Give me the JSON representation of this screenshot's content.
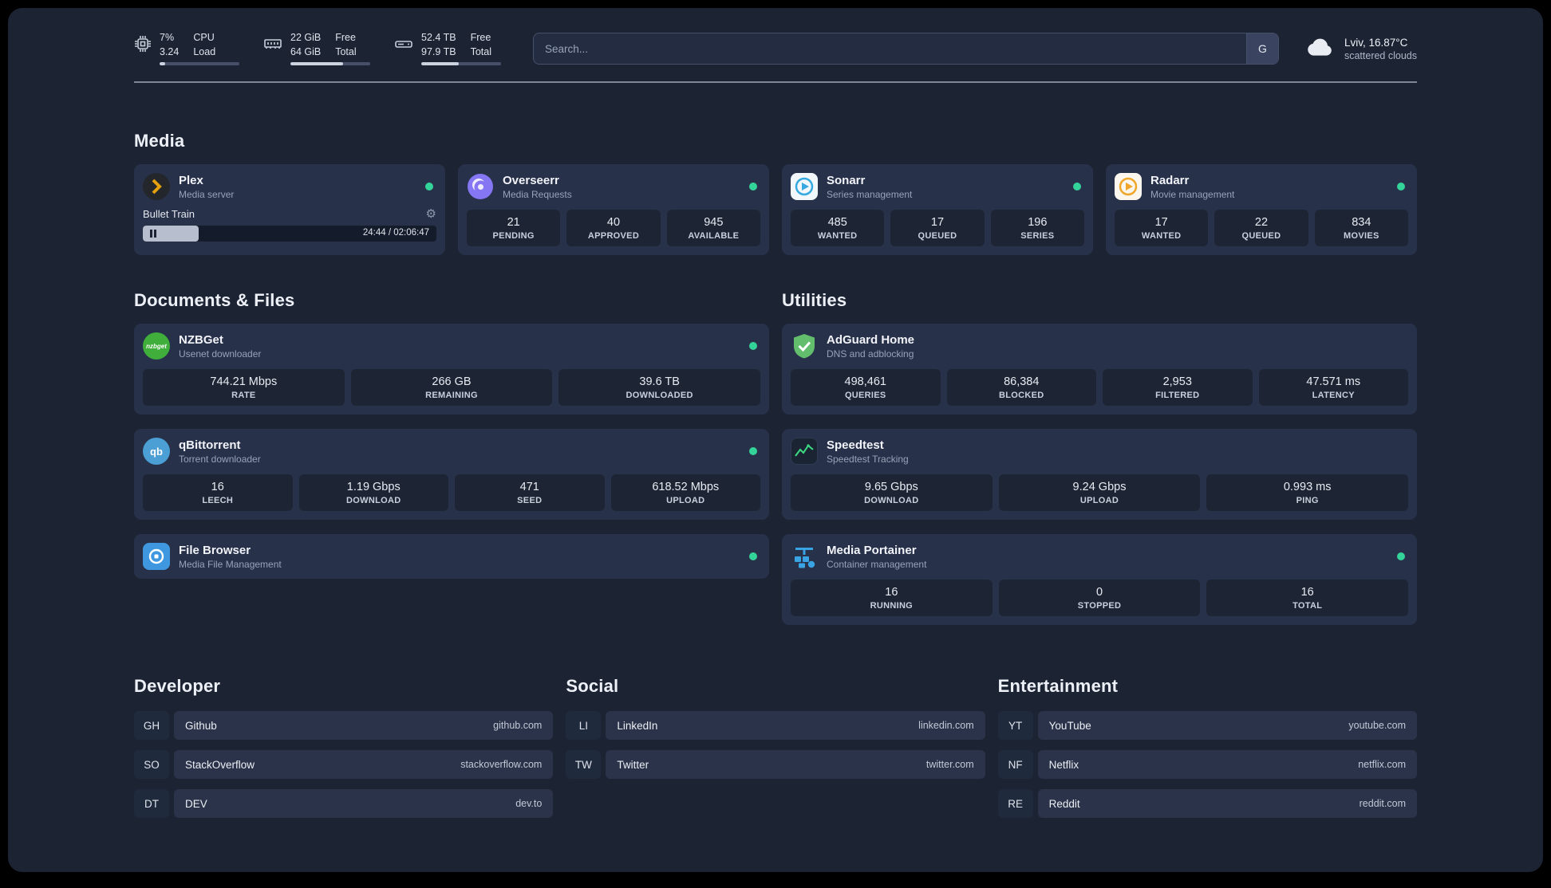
{
  "topbar": {
    "cpu": {
      "value_top": "7%",
      "value_bottom": "3.24",
      "label_top": "CPU",
      "label_bottom": "Load",
      "progress": 7
    },
    "ram": {
      "value_top": "22 GiB",
      "value_bottom": "64 GiB",
      "label_top": "Free",
      "label_bottom": "Total",
      "progress": 66
    },
    "disk": {
      "value_top": "52.4 TB",
      "value_bottom": "97.9 TB",
      "label_top": "Free",
      "label_bottom": "Total",
      "progress": 47
    },
    "search": {
      "placeholder": "Search...",
      "provider": "G"
    },
    "weather": {
      "location": "Lviv, 16.87°C",
      "condition": "scattered clouds"
    }
  },
  "media": {
    "title": "Media",
    "plex": {
      "name": "Plex",
      "subtitle": "Media server",
      "track": "Bullet Train",
      "time": "24:44 / 02:06:47",
      "progress": 19
    },
    "overseerr": {
      "name": "Overseerr",
      "subtitle": "Media Requests",
      "stats": [
        {
          "value": "21",
          "label": "PENDING"
        },
        {
          "value": "40",
          "label": "APPROVED"
        },
        {
          "value": "945",
          "label": "AVAILABLE"
        }
      ]
    },
    "sonarr": {
      "name": "Sonarr",
      "subtitle": "Series management",
      "stats": [
        {
          "value": "485",
          "label": "WANTED"
        },
        {
          "value": "17",
          "label": "QUEUED"
        },
        {
          "value": "196",
          "label": "SERIES"
        }
      ]
    },
    "radarr": {
      "name": "Radarr",
      "subtitle": "Movie management",
      "stats": [
        {
          "value": "17",
          "label": "WANTED"
        },
        {
          "value": "22",
          "label": "QUEUED"
        },
        {
          "value": "834",
          "label": "MOVIES"
        }
      ]
    }
  },
  "documents": {
    "title": "Documents & Files",
    "nzbget": {
      "name": "NZBGet",
      "subtitle": "Usenet downloader",
      "icon_text": "nzbget",
      "stats": [
        {
          "value": "744.21 Mbps",
          "label": "RATE"
        },
        {
          "value": "266 GB",
          "label": "REMAINING"
        },
        {
          "value": "39.6 TB",
          "label": "DOWNLOADED"
        }
      ]
    },
    "qbittorrent": {
      "name": "qBittorrent",
      "subtitle": "Torrent downloader",
      "icon_text": "qb",
      "stats": [
        {
          "value": "16",
          "label": "LEECH"
        },
        {
          "value": "1.19 Gbps",
          "label": "DOWNLOAD"
        },
        {
          "value": "471",
          "label": "SEED"
        },
        {
          "value": "618.52 Mbps",
          "label": "UPLOAD"
        }
      ]
    },
    "filebrowser": {
      "name": "File Browser",
      "subtitle": "Media File Management"
    }
  },
  "utilities": {
    "title": "Utilities",
    "adguard": {
      "name": "AdGuard Home",
      "subtitle": "DNS and adblocking",
      "stats": [
        {
          "value": "498,461",
          "label": "QUERIES"
        },
        {
          "value": "86,384",
          "label": "BLOCKED"
        },
        {
          "value": "2,953",
          "label": "FILTERED"
        },
        {
          "value": "47.571 ms",
          "label": "LATENCY"
        }
      ]
    },
    "speedtest": {
      "name": "Speedtest",
      "subtitle": "Speedtest Tracking",
      "stats": [
        {
          "value": "9.65 Gbps",
          "label": "DOWNLOAD"
        },
        {
          "value": "9.24 Gbps",
          "label": "UPLOAD"
        },
        {
          "value": "0.993 ms",
          "label": "PING"
        }
      ]
    },
    "portainer": {
      "name": "Media Portainer",
      "subtitle": "Container management",
      "stats": [
        {
          "value": "16",
          "label": "RUNNING"
        },
        {
          "value": "0",
          "label": "STOPPED"
        },
        {
          "value": "16",
          "label": "TOTAL"
        }
      ]
    }
  },
  "bookmarks": {
    "developer": {
      "title": "Developer",
      "items": [
        {
          "abbr": "GH",
          "name": "Github",
          "domain": "github.com"
        },
        {
          "abbr": "SO",
          "name": "StackOverflow",
          "domain": "stackoverflow.com"
        },
        {
          "abbr": "DT",
          "name": "DEV",
          "domain": "dev.to"
        }
      ]
    },
    "social": {
      "title": "Social",
      "items": [
        {
          "abbr": "LI",
          "name": "LinkedIn",
          "domain": "linkedin.com"
        },
        {
          "abbr": "TW",
          "name": "Twitter",
          "domain": "twitter.com"
        }
      ]
    },
    "entertainment": {
      "title": "Entertainment",
      "items": [
        {
          "abbr": "YT",
          "name": "YouTube",
          "domain": "youtube.com"
        },
        {
          "abbr": "NF",
          "name": "Netflix",
          "domain": "netflix.com"
        },
        {
          "abbr": "RE",
          "name": "Reddit",
          "domain": "reddit.com"
        }
      ]
    }
  },
  "colors": {
    "status_online": "#34d399",
    "accent_plex": "#e5a00d"
  }
}
